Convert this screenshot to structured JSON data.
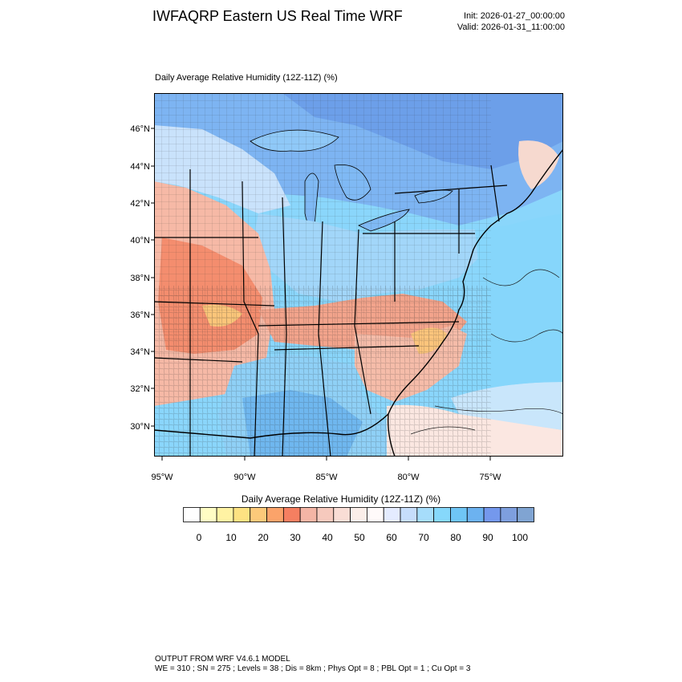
{
  "header": {
    "title": "IWFAQRP Eastern US Real Time WRF",
    "init": "Init: 2026-01-27_00:00:00",
    "valid": "Valid: 2026-01-31_11:00:00"
  },
  "plot": {
    "title": "Daily Average Relative Humidity (12Z-11Z)   (%)",
    "lat_labels": [
      "46°N",
      "44°N",
      "42°N",
      "40°N",
      "38°N",
      "36°N",
      "34°N",
      "32°N",
      "30°N"
    ],
    "lon_labels": [
      "95°W",
      "90°W",
      "85°W",
      "80°W",
      "75°W"
    ]
  },
  "colorbar": {
    "title": "Daily Average Relative Humidity (12Z-11Z)  (%)",
    "tick_labels": [
      "0",
      "10",
      "20",
      "30",
      "40",
      "50",
      "60",
      "70",
      "80",
      "90",
      "100"
    ],
    "colors": [
      "#ffffff",
      "#fffdc4",
      "#fff3a3",
      "#fde282",
      "#fcc97a",
      "#fba36a",
      "#f57f61",
      "#f4b5a5",
      "#f6c9bd",
      "#f9ddd5",
      "#fbeee9",
      "#fffafa",
      "#e4ebff",
      "#c6ddfb",
      "#a6ddfb",
      "#86d8fb",
      "#6fc5f5",
      "#6cb2f0",
      "#7498ed",
      "#7e9fde",
      "#80a4d2"
    ]
  },
  "footer": {
    "line1": "OUTPUT FROM WRF V4.6.1 MODEL",
    "line2": "WE = 310 ; SN = 275 ; Levels = 38 ; Dis = 8km ; Phys Opt = 8 ; PBL Opt = 1 ; Cu Opt = 3"
  }
}
